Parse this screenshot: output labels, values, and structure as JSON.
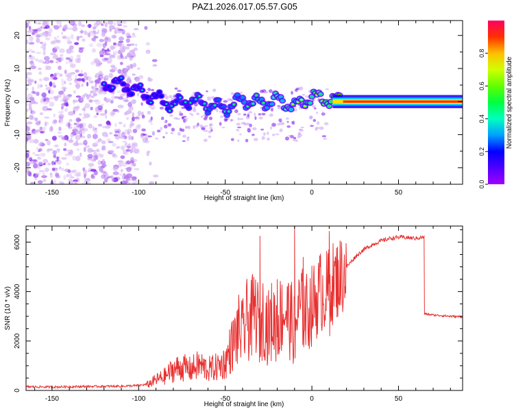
{
  "title": "PAZ1.2026.017.05.57.G05",
  "colors": {
    "snr_line": "#e83030",
    "axis": "#000000",
    "background": "#ffffff"
  },
  "chart_data": [
    {
      "type": "heatmap",
      "name": "spectrogram",
      "xlabel": "Height of straight line (km)",
      "ylabel": "Frequency (Hz)",
      "xlim": [
        -165,
        87
      ],
      "ylim": [
        -25,
        24.5
      ],
      "xticks": [
        -150,
        -100,
        -50,
        0,
        50
      ],
      "yticks": [
        -20,
        -10,
        0,
        10,
        20
      ],
      "xtick_labels": [
        "-150",
        "-100",
        "-50",
        "0",
        "50"
      ],
      "ytick_labels": [
        "-20",
        "-10",
        "0",
        "10",
        "20"
      ],
      "colorbar": {
        "label": "Normalized spectral amplitude",
        "range": [
          0,
          1
        ],
        "ticks": [
          "0.0",
          "0.2",
          "0.4",
          "0.6",
          "0.8"
        ],
        "colormap": [
          "#a000ff",
          "#4000ff",
          "#0000ff",
          "#00c0ff",
          "#00ff80",
          "#40ff00",
          "#c0ff00",
          "#ffff00",
          "#ff9000",
          "#ff2000",
          "#ff0050"
        ]
      },
      "noise_region": {
        "x_range": [
          -165,
          -90
        ],
        "freq_range": [
          -25,
          24
        ],
        "amplitude": "0.0-0.2"
      },
      "signal_track": [
        {
          "x": -120,
          "freq": 5.5,
          "amp": 0.3
        },
        {
          "x": -110,
          "freq": 5.2,
          "amp": 0.3
        },
        {
          "x": -100,
          "freq": 3.0,
          "amp": 0.3
        },
        {
          "x": -90,
          "freq": 1.0,
          "amp": 0.35
        },
        {
          "x": -80,
          "freq": -1.0,
          "amp": 0.4
        },
        {
          "x": -70,
          "freq": 0.5,
          "amp": 0.4
        },
        {
          "x": -60,
          "freq": -1.0,
          "amp": 0.45
        },
        {
          "x": -50,
          "freq": -2.0,
          "amp": 0.45
        },
        {
          "x": -40,
          "freq": 0.5,
          "amp": 0.5
        },
        {
          "x": -30,
          "freq": -0.5,
          "amp": 0.5
        },
        {
          "x": -20,
          "freq": 0.5,
          "amp": 0.55
        },
        {
          "x": -10,
          "freq": -1.5,
          "amp": 0.6
        },
        {
          "x": 0,
          "freq": 1.5,
          "amp": 0.7
        },
        {
          "x": 10,
          "freq": 0.5,
          "amp": 0.75
        },
        {
          "x": 20,
          "freq": 0.1,
          "amp": 1.0
        },
        {
          "x": 50,
          "freq": 0.0,
          "amp": 0.95
        },
        {
          "x": 87,
          "freq": 0.0,
          "amp": 0.9
        }
      ]
    },
    {
      "type": "line",
      "name": "snr",
      "xlabel": "Height of straight line (km)",
      "ylabel": "SNR (10 * v/v)",
      "xlim": [
        -165,
        87
      ],
      "ylim": [
        0,
        6650
      ],
      "xticks": [
        -150,
        -100,
        -50,
        0,
        50
      ],
      "yticks": [
        0,
        2000,
        4000,
        6000
      ],
      "xtick_labels": [
        "-150",
        "-100",
        "-50",
        "0",
        "50"
      ],
      "ytick_labels": [
        "0",
        "2000",
        "4000",
        "6000"
      ],
      "series": [
        {
          "name": "SNR",
          "x": [
            -165,
            -150,
            -130,
            -110,
            -100,
            -95,
            -90,
            -85,
            -80,
            -75,
            -70,
            -65,
            -60,
            -55,
            -50,
            -47,
            -45,
            -42,
            -40,
            -38,
            -35,
            -33,
            -30,
            -28,
            -25,
            -23,
            -20,
            -18,
            -15,
            -13,
            -10,
            -8,
            -5,
            -3,
            0,
            2,
            5,
            8,
            10,
            12,
            15,
            18,
            20,
            25,
            30,
            35,
            40,
            45,
            50,
            55,
            60,
            64,
            65,
            70,
            75,
            80,
            87
          ],
          "values": [
            150,
            140,
            160,
            170,
            200,
            250,
            450,
            600,
            900,
            1000,
            900,
            1100,
            900,
            1000,
            1200,
            1800,
            2100,
            2600,
            2400,
            3000,
            3000,
            3500,
            2700,
            3200,
            2700,
            3000,
            2900,
            3200,
            3400,
            3100,
            2600,
            3400,
            3500,
            3300,
            3600,
            3800,
            4200,
            4100,
            4400,
            4500,
            4700,
            4900,
            5000,
            5400,
            5700,
            5900,
            6050,
            6150,
            6200,
            6180,
            6150,
            6200,
            3100,
            3050,
            3030,
            3000,
            2980
          ]
        }
      ],
      "peaks": [
        {
          "x": -30,
          "value": 6250
        },
        {
          "x": -10,
          "value": 6650
        },
        {
          "x": 10,
          "value": 6450
        },
        {
          "x": -20,
          "value": 4500
        },
        {
          "x": -5,
          "value": 5400
        }
      ]
    }
  ]
}
